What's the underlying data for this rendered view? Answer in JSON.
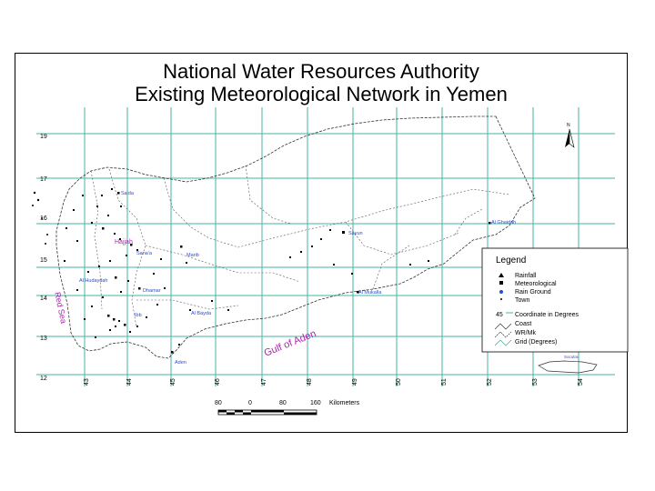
{
  "title_line1": "National Water Resources Authority",
  "title_line2": "Existing Meteorological Network in Yemen",
  "lat_labels": [
    "19",
    "17",
    "16",
    "15",
    "14",
    "13",
    "12"
  ],
  "lon_labels": [
    "43",
    "44",
    "45",
    "46",
    "47",
    "48",
    "49",
    "50",
    "51",
    "52",
    "53",
    "54"
  ],
  "towns": [
    "Sa'da",
    "Hajjah",
    "Sana'a",
    "Marib",
    "Sayun",
    "Al Ghaidah",
    "Al Hudaydah",
    "Dhamar",
    "Ibb",
    "Al Bayda",
    "Al Mukalla",
    "Aden"
  ],
  "gulf_label": "Gulf of Aden",
  "red_sea_label": "Red Sea",
  "socotra_label": "Socotra",
  "north_arrow_label": "N",
  "legend": {
    "title": "Legend",
    "items": [
      "Rainfall",
      "Meteorological",
      "Rain Ground",
      "Town",
      "Coordinate in Degrees",
      "Coast",
      "WR/Mk",
      "Grid (Degrees)"
    ],
    "grid_value": "45"
  },
  "scale": {
    "ticks": [
      "80",
      "0",
      "80",
      "160"
    ],
    "unit": "Kilometers"
  }
}
